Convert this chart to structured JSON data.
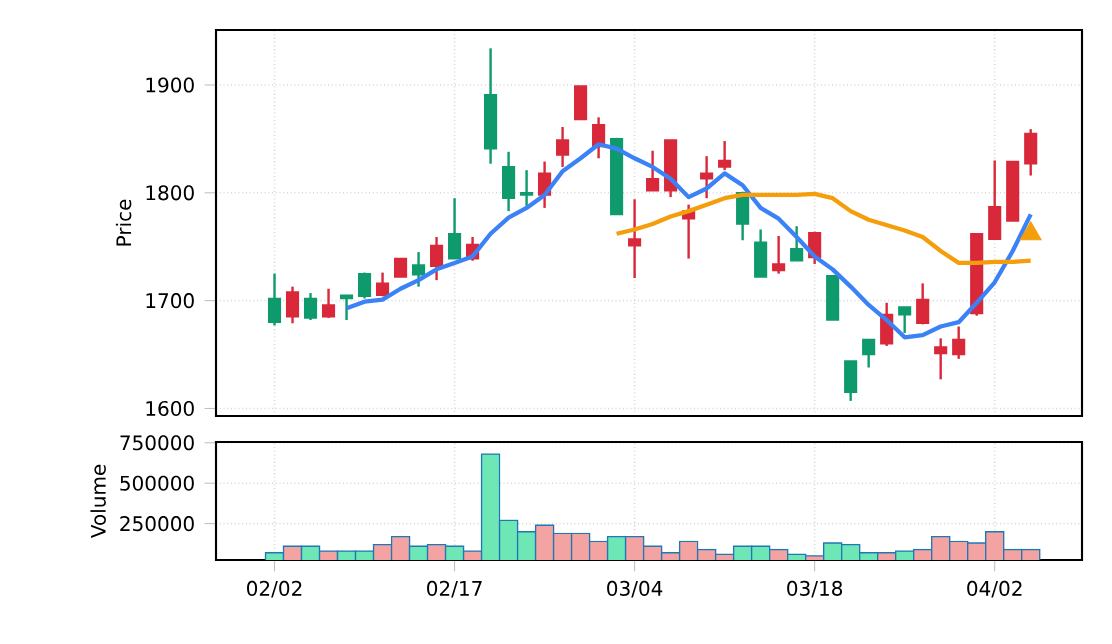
{
  "chart_data": [
    {
      "type": "candlestick",
      "ylabel": "Price",
      "categories": [
        null,
        null,
        null,
        null,
        null,
        null,
        null,
        null,
        null,
        null,
        null,
        null,
        null,
        null,
        null,
        null,
        null,
        null,
        null,
        null,
        null,
        null,
        null,
        null,
        null,
        null,
        null,
        null,
        null,
        null,
        null,
        null,
        null,
        null,
        null,
        null,
        null,
        null,
        null,
        null,
        null,
        null,
        null
      ],
      "ohlc": [
        [
          1680,
          1725,
          1677,
          1702
        ],
        [
          1708,
          1713,
          1679,
          1685
        ],
        [
          1684,
          1707,
          1682,
          1702
        ],
        [
          1696,
          1711,
          1684,
          1685
        ],
        [
          1702,
          1705,
          1682,
          1705
        ],
        [
          1704,
          1726,
          1702,
          1725
        ],
        [
          1716,
          1726,
          1704,
          1705
        ],
        [
          1739,
          1739,
          1722,
          1722
        ],
        [
          1724,
          1745,
          1713,
          1733
        ],
        [
          1751,
          1759,
          1719,
          1732
        ],
        [
          1739,
          1795,
          1739,
          1762
        ],
        [
          1752,
          1759,
          1737,
          1739
        ],
        [
          1841,
          1934,
          1827,
          1891
        ],
        [
          1795,
          1838,
          1783,
          1824
        ],
        [
          1798,
          1821,
          1788,
          1800
        ],
        [
          1818,
          1829,
          1786,
          1798
        ],
        [
          1849,
          1861,
          1824,
          1835
        ],
        [
          1899,
          1899,
          1868,
          1868
        ],
        [
          1863,
          1870,
          1832,
          1843
        ],
        [
          1780,
          1851,
          1780,
          1850
        ],
        [
          1757,
          1794,
          1721,
          1751
        ],
        [
          1813,
          1839,
          1802,
          1802
        ],
        [
          1849,
          1849,
          1796,
          1802
        ],
        [
          1783,
          1789,
          1739,
          1776
        ],
        [
          1818,
          1834,
          1795,
          1813
        ],
        [
          1830,
          1848,
          1821,
          1824
        ],
        [
          1771,
          1801,
          1756,
          1800
        ],
        [
          1722,
          1766,
          1722,
          1754
        ],
        [
          1734,
          1760,
          1725,
          1728
        ],
        [
          1737,
          1769,
          1737,
          1748
        ],
        [
          1763,
          1764,
          1734,
          1740
        ],
        [
          1682,
          1723,
          1682,
          1723
        ],
        [
          1615,
          1644,
          1607,
          1644
        ],
        [
          1650,
          1664,
          1638,
          1664
        ],
        [
          1687,
          1698,
          1658,
          1660
        ],
        [
          1687,
          1694,
          1670,
          1694
        ],
        [
          1701,
          1716,
          1678,
          1679
        ],
        [
          1657,
          1665,
          1627,
          1651
        ],
        [
          1664,
          1676,
          1646,
          1650
        ],
        [
          1762,
          1762,
          1686,
          1688
        ],
        [
          1787,
          1830,
          1757,
          1757
        ],
        [
          1829,
          1829,
          1774,
          1774
        ],
        [
          1855,
          1859,
          1816,
          1827
        ]
      ],
      "colors": [
        "#0e9a6c",
        "#d8283a",
        "#0e9a6c",
        "#d8283a",
        "#0e9a6c",
        "#0e9a6c",
        "#d8283a",
        "#d8283a",
        "#0e9a6c",
        "#d8283a",
        "#0e9a6c",
        "#d8283a",
        "#0e9a6c",
        "#0e9a6c",
        "#0e9a6c",
        "#d8283a",
        "#d8283a",
        "#d8283a",
        "#d8283a",
        "#0e9a6c",
        "#d8283a",
        "#d8283a",
        "#d8283a",
        "#d8283a",
        "#d8283a",
        "#d8283a",
        "#0e9a6c",
        "#0e9a6c",
        "#d8283a",
        "#0e9a6c",
        "#d8283a",
        "#0e9a6c",
        "#0e9a6c",
        "#0e9a6c",
        "#d8283a",
        "#0e9a6c",
        "#d8283a",
        "#d8283a",
        "#d8283a",
        "#d8283a",
        "#d8283a",
        "#d8283a",
        "#d8283a"
      ],
      "series": [
        {
          "type": "line",
          "color": "#3b82f6",
          "values": [
            null,
            null,
            null,
            null,
            1693,
            1699,
            1701,
            1711,
            1719,
            1729,
            1735,
            1741,
            1762,
            1777,
            1786,
            1798,
            1820,
            1832,
            1845,
            1841,
            1832,
            1824,
            1813,
            1796,
            1804,
            1818,
            1807,
            1786,
            1776,
            1759,
            1741,
            1729,
            1713,
            1696,
            1682,
            1666,
            1668,
            1676,
            1680,
            1698,
            1717,
            1746,
            1780
          ]
        },
        {
          "type": "line",
          "color": "#f59e0b",
          "values": [
            null,
            null,
            null,
            null,
            null,
            null,
            null,
            null,
            null,
            null,
            null,
            null,
            null,
            null,
            null,
            null,
            null,
            null,
            null,
            1762,
            1766,
            1771,
            1778,
            1783,
            1789,
            1795,
            1798,
            1798,
            1798,
            1798,
            1799,
            1795,
            1783,
            1775,
            1770,
            1765,
            1759,
            1746,
            1735,
            1735,
            1736,
            1736,
            1737
          ]
        },
        {
          "type": "scatter",
          "marker": "triangle",
          "color": "#f59e0b",
          "values": [
            null,
            null,
            null,
            null,
            null,
            null,
            null,
            null,
            null,
            null,
            null,
            null,
            null,
            null,
            null,
            null,
            null,
            null,
            null,
            null,
            null,
            null,
            null,
            null,
            null,
            null,
            null,
            null,
            null,
            null,
            null,
            null,
            null,
            null,
            null,
            null,
            null,
            null,
            null,
            null,
            null,
            null,
            1762
          ]
        }
      ],
      "ylim": [
        1593,
        1951
      ],
      "yticks": [
        1600,
        1700,
        1800,
        1900
      ],
      "grid": true,
      "tick_labels": "y"
    },
    {
      "type": "bar",
      "ylabel": "Volume",
      "categories": [
        "02/02",
        null,
        null,
        null,
        null,
        null,
        null,
        null,
        null,
        null,
        "02/17",
        null,
        null,
        null,
        null,
        null,
        null,
        null,
        null,
        null,
        "03/04",
        null,
        null,
        null,
        null,
        null,
        null,
        null,
        null,
        null,
        "03/18",
        null,
        null,
        null,
        null,
        null,
        null,
        null,
        null,
        null,
        "04/02",
        null,
        null
      ],
      "values": [
        70000,
        110000,
        110000,
        80000,
        80000,
        80000,
        120000,
        170000,
        110000,
        120000,
        110000,
        80000,
        680000,
        270000,
        200000,
        240000,
        190000,
        190000,
        140000,
        170000,
        170000,
        110000,
        70000,
        140000,
        90000,
        60000,
        110000,
        110000,
        90000,
        60000,
        50000,
        130000,
        120000,
        70000,
        70000,
        80000,
        90000,
        170000,
        140000,
        130000,
        200000,
        90000,
        90000
      ],
      "colors": [
        "#6ee7b7",
        "#f4a3a3",
        "#6ee7b7",
        "#f4a3a3",
        "#6ee7b7",
        "#6ee7b7",
        "#f4a3a3",
        "#f4a3a3",
        "#6ee7b7",
        "#f4a3a3",
        "#6ee7b7",
        "#f4a3a3",
        "#6ee7b7",
        "#6ee7b7",
        "#6ee7b7",
        "#f4a3a3",
        "#f4a3a3",
        "#f4a3a3",
        "#f4a3a3",
        "#6ee7b7",
        "#f4a3a3",
        "#f4a3a3",
        "#f4a3a3",
        "#f4a3a3",
        "#f4a3a3",
        "#f4a3a3",
        "#6ee7b7",
        "#6ee7b7",
        "#f4a3a3",
        "#6ee7b7",
        "#f4a3a3",
        "#6ee7b7",
        "#6ee7b7",
        "#6ee7b7",
        "#f4a3a3",
        "#6ee7b7",
        "#f4a3a3",
        "#f4a3a3",
        "#f4a3a3",
        "#f4a3a3",
        "#f4a3a3",
        "#f4a3a3",
        "#f4a3a3"
      ],
      "ylim": [
        25000,
        755000
      ],
      "yticks": [
        250000,
        500000,
        750000
      ],
      "grid": true
    }
  ]
}
